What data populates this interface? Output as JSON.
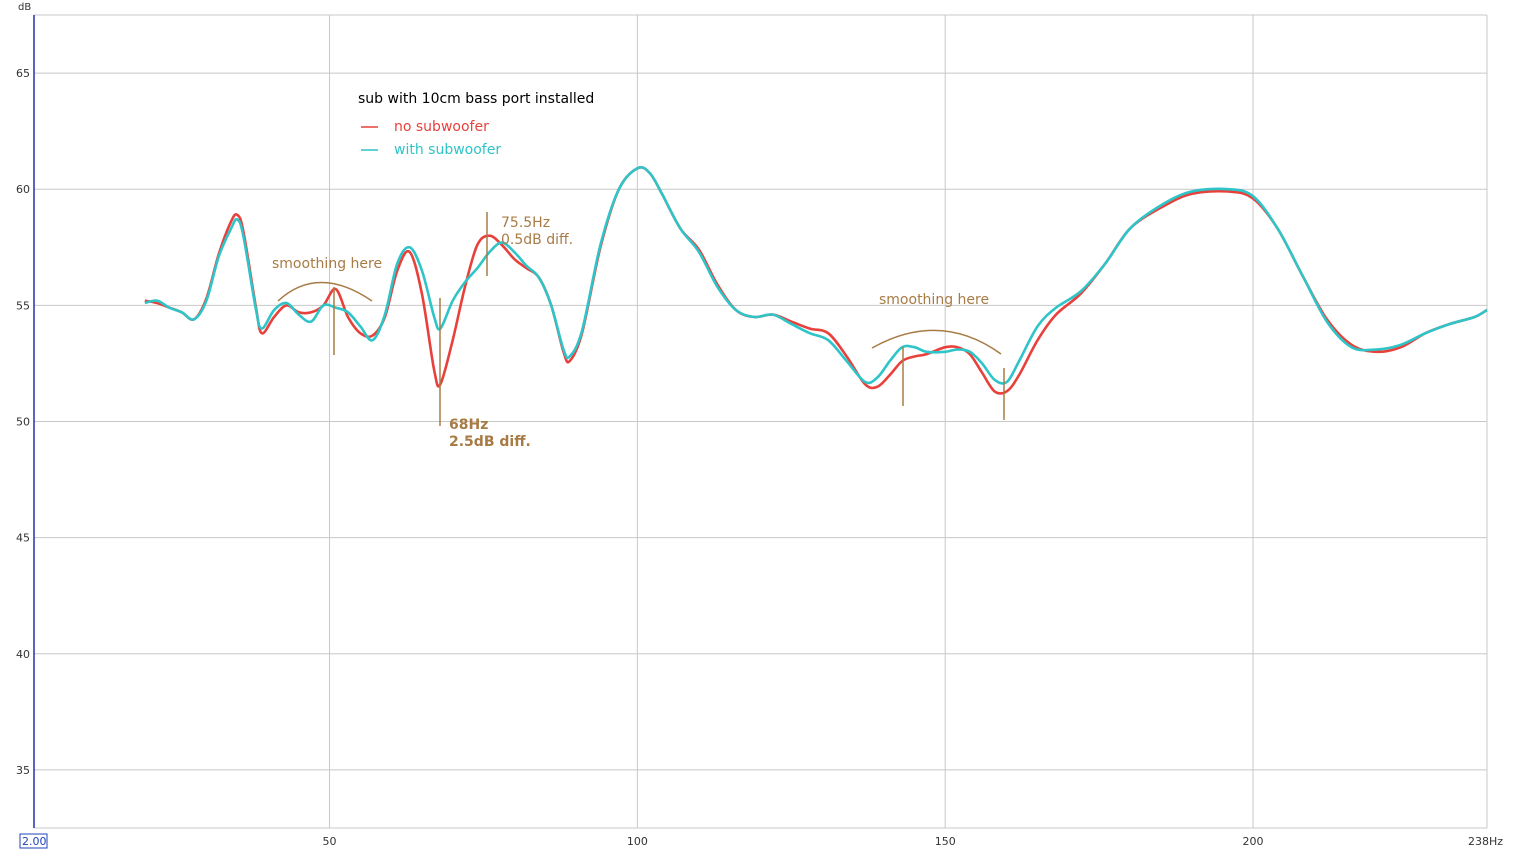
{
  "chart_data": {
    "type": "line",
    "title": "sub with 10cm bass port installed",
    "ylabel": "dB",
    "xlim": [
      2.0,
      238
    ],
    "ylim": [
      32.5,
      67.5
    ],
    "x_tick_labels": [
      "50",
      "100",
      "150",
      "200",
      "238Hz"
    ],
    "x_ticks": [
      50,
      100,
      150,
      200,
      238
    ],
    "y_ticks": [
      35,
      40,
      45,
      50,
      55,
      60,
      65
    ],
    "corner_label": "2.00",
    "grid": true,
    "legend_position": "top-left",
    "series": [
      {
        "name": "no subwoofer",
        "color": "#e8413c",
        "points": [
          [
            20,
            55.2
          ],
          [
            22,
            55.1
          ],
          [
            24,
            54.9
          ],
          [
            26,
            54.7
          ],
          [
            28,
            54.4
          ],
          [
            30,
            55.3
          ],
          [
            32,
            57.2
          ],
          [
            34,
            58.6
          ],
          [
            35,
            58.9
          ],
          [
            36,
            58.2
          ],
          [
            38,
            55.0
          ],
          [
            39,
            53.8
          ],
          [
            41,
            54.5
          ],
          [
            43,
            55.0
          ],
          [
            45,
            54.7
          ],
          [
            47,
            54.7
          ],
          [
            49,
            55.0
          ],
          [
            51,
            55.7
          ],
          [
            53,
            54.5
          ],
          [
            55,
            53.8
          ],
          [
            57,
            53.7
          ],
          [
            59,
            54.5
          ],
          [
            61,
            56.5
          ],
          [
            63,
            57.3
          ],
          [
            65,
            55.5
          ],
          [
            67,
            52.2
          ],
          [
            68,
            51.6
          ],
          [
            70,
            53.5
          ],
          [
            72,
            55.8
          ],
          [
            74,
            57.6
          ],
          [
            76,
            58.0
          ],
          [
            78,
            57.6
          ],
          [
            80,
            57.0
          ],
          [
            82,
            56.6
          ],
          [
            84,
            56.2
          ],
          [
            86,
            55.0
          ],
          [
            88,
            53.0
          ],
          [
            89,
            52.6
          ],
          [
            91,
            53.8
          ],
          [
            94,
            57.5
          ],
          [
            97,
            60.0
          ],
          [
            100,
            60.9
          ],
          [
            102,
            60.7
          ],
          [
            104,
            59.8
          ],
          [
            107,
            58.3
          ],
          [
            110,
            57.4
          ],
          [
            113,
            55.9
          ],
          [
            116,
            54.8
          ],
          [
            119,
            54.5
          ],
          [
            122,
            54.6
          ],
          [
            125,
            54.3
          ],
          [
            128,
            54.0
          ],
          [
            131,
            53.8
          ],
          [
            134,
            52.8
          ],
          [
            137,
            51.6
          ],
          [
            139,
            51.5
          ],
          [
            141,
            52.0
          ],
          [
            143,
            52.6
          ],
          [
            145,
            52.8
          ],
          [
            147,
            52.9
          ],
          [
            150,
            53.2
          ],
          [
            152,
            53.2
          ],
          [
            154,
            52.9
          ],
          [
            156,
            52.1
          ],
          [
            158,
            51.3
          ],
          [
            160,
            51.3
          ],
          [
            162,
            52.0
          ],
          [
            165,
            53.5
          ],
          [
            168,
            54.6
          ],
          [
            172,
            55.5
          ],
          [
            176,
            56.8
          ],
          [
            180,
            58.3
          ],
          [
            185,
            59.2
          ],
          [
            190,
            59.8
          ],
          [
            196,
            59.9
          ],
          [
            200,
            59.6
          ],
          [
            204,
            58.3
          ],
          [
            208,
            56.3
          ],
          [
            212,
            54.4
          ],
          [
            216,
            53.3
          ],
          [
            220,
            53.0
          ],
          [
            224,
            53.2
          ],
          [
            228,
            53.8
          ],
          [
            232,
            54.2
          ],
          [
            236,
            54.5
          ],
          [
            238,
            54.8
          ]
        ]
      },
      {
        "name": "with subwoofer",
        "color": "#2ec4c8",
        "points": [
          [
            20,
            55.1
          ],
          [
            22,
            55.2
          ],
          [
            24,
            54.9
          ],
          [
            26,
            54.7
          ],
          [
            28,
            54.4
          ],
          [
            30,
            55.2
          ],
          [
            32,
            57.1
          ],
          [
            34,
            58.3
          ],
          [
            35,
            58.7
          ],
          [
            36,
            58.0
          ],
          [
            38,
            54.9
          ],
          [
            39,
            54.0
          ],
          [
            41,
            54.8
          ],
          [
            43,
            55.1
          ],
          [
            45,
            54.6
          ],
          [
            47,
            54.3
          ],
          [
            49,
            55.0
          ],
          [
            51,
            54.9
          ],
          [
            53,
            54.7
          ],
          [
            55,
            54.1
          ],
          [
            57,
            53.5
          ],
          [
            59,
            54.6
          ],
          [
            61,
            56.8
          ],
          [
            63,
            57.5
          ],
          [
            65,
            56.5
          ],
          [
            67,
            54.5
          ],
          [
            68,
            54.0
          ],
          [
            70,
            55.2
          ],
          [
            72,
            56.0
          ],
          [
            74,
            56.6
          ],
          [
            76,
            57.3
          ],
          [
            78,
            57.7
          ],
          [
            80,
            57.3
          ],
          [
            82,
            56.7
          ],
          [
            84,
            56.2
          ],
          [
            86,
            55.0
          ],
          [
            88,
            53.1
          ],
          [
            89,
            52.8
          ],
          [
            91,
            53.9
          ],
          [
            94,
            57.6
          ],
          [
            97,
            60.0
          ],
          [
            100,
            60.9
          ],
          [
            102,
            60.7
          ],
          [
            104,
            59.8
          ],
          [
            107,
            58.3
          ],
          [
            110,
            57.3
          ],
          [
            113,
            55.8
          ],
          [
            116,
            54.8
          ],
          [
            119,
            54.5
          ],
          [
            122,
            54.6
          ],
          [
            125,
            54.2
          ],
          [
            128,
            53.8
          ],
          [
            131,
            53.5
          ],
          [
            134,
            52.6
          ],
          [
            137,
            51.7
          ],
          [
            139,
            51.9
          ],
          [
            141,
            52.6
          ],
          [
            143,
            53.2
          ],
          [
            145,
            53.2
          ],
          [
            147,
            53.0
          ],
          [
            150,
            53.0
          ],
          [
            152,
            53.1
          ],
          [
            154,
            53.0
          ],
          [
            156,
            52.5
          ],
          [
            158,
            51.8
          ],
          [
            160,
            51.7
          ],
          [
            162,
            52.6
          ],
          [
            165,
            54.1
          ],
          [
            168,
            54.9
          ],
          [
            172,
            55.6
          ],
          [
            176,
            56.8
          ],
          [
            180,
            58.3
          ],
          [
            185,
            59.3
          ],
          [
            190,
            59.9
          ],
          [
            196,
            60.0
          ],
          [
            200,
            59.7
          ],
          [
            204,
            58.3
          ],
          [
            208,
            56.3
          ],
          [
            212,
            54.3
          ],
          [
            216,
            53.2
          ],
          [
            220,
            53.1
          ],
          [
            224,
            53.3
          ],
          [
            228,
            53.8
          ],
          [
            232,
            54.2
          ],
          [
            236,
            54.5
          ],
          [
            238,
            54.8
          ]
        ]
      }
    ],
    "annotations": [
      {
        "text": "smoothing here"
      },
      {
        "text": "75.5Hz"
      },
      {
        "text": "0.5dB diff."
      },
      {
        "text": "68Hz"
      },
      {
        "text": "2.5dB diff."
      },
      {
        "text": "smoothing here"
      }
    ]
  },
  "colors": {
    "grid": "#c8c8c8",
    "annotation": "#a87b45",
    "axis": "#2233aa"
  }
}
